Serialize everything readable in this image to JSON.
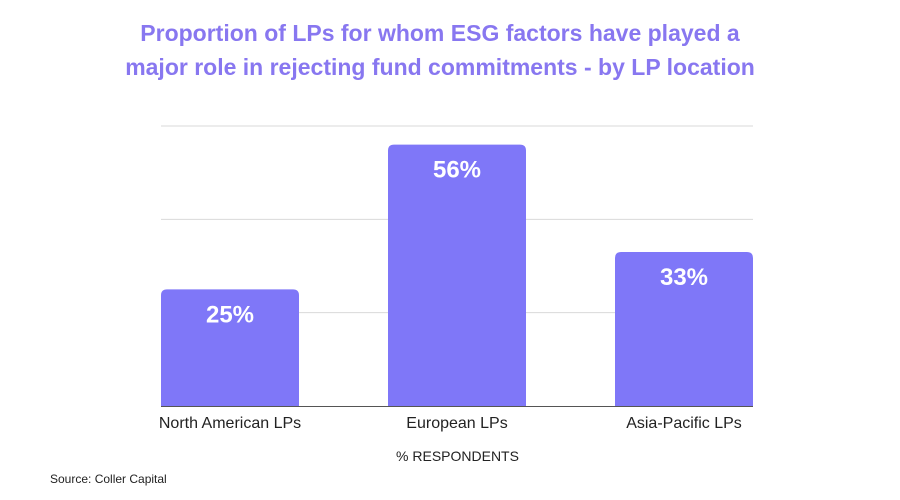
{
  "chart_data": {
    "type": "bar",
    "title_lines": [
      "Proportion of LPs for whom ESG factors have played a",
      "major role in rejecting fund commitments - by LP location"
    ],
    "categories": [
      "North American LPs",
      "European LPs",
      "Asia-Pacific LPs"
    ],
    "values": [
      25,
      56,
      33
    ],
    "data_labels": [
      "25%",
      "56%",
      "33%"
    ],
    "xlabel": "% RESPONDENTS",
    "ylabel": "",
    "ylim": [
      0,
      60
    ],
    "grid": true,
    "legend": "none",
    "source": "Source: Coller Capital",
    "colors": {
      "bar": "#7f77f8",
      "title": "#8877f0",
      "grid": "#d9d9d9",
      "axis": "#555555"
    }
  }
}
